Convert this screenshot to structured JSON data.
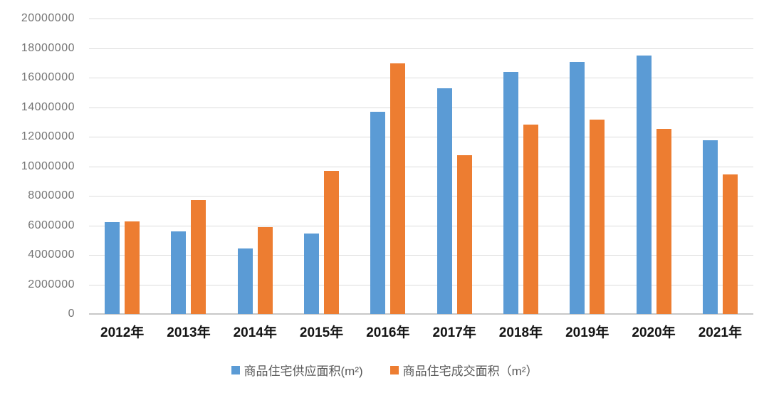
{
  "chart_data": {
    "type": "bar",
    "title": "",
    "xlabel": "",
    "ylabel": "",
    "categories": [
      "2012年",
      "2013年",
      "2014年",
      "2015年",
      "2016年",
      "2017年",
      "2018年",
      "2019年",
      "2020年",
      "2021年"
    ],
    "series": [
      {
        "name": "商品住宅供应面积(m²)",
        "color": "#5B9BD5",
        "values": [
          6200000,
          5600000,
          4450000,
          5450000,
          13700000,
          15300000,
          16400000,
          17050000,
          17500000,
          11750000
        ]
      },
      {
        "name": "商品住宅成交面积（m²）",
        "color": "#ED7D31",
        "values": [
          6250000,
          7700000,
          5900000,
          9700000,
          16950000,
          10750000,
          12800000,
          13150000,
          12550000,
          9450000
        ]
      }
    ],
    "ylim": [
      0,
      20000000
    ],
    "ytick_step": 2000000,
    "ytick_labels": [
      "0",
      "2000000",
      "4000000",
      "6000000",
      "8000000",
      "10000000",
      "12000000",
      "14000000",
      "16000000",
      "18000000",
      "20000000"
    ],
    "grid": "horizontal",
    "legend_position": "bottom"
  },
  "colors": {
    "background": "#FFFFFF",
    "gridline": "#DCDCDC",
    "axis_line": "#C8C8C8",
    "ytick_text": "#757575",
    "xtick_text": "#141414",
    "legend_text": "#595959",
    "series_blue": "#5B9BD5",
    "series_orange": "#ED7D31"
  }
}
